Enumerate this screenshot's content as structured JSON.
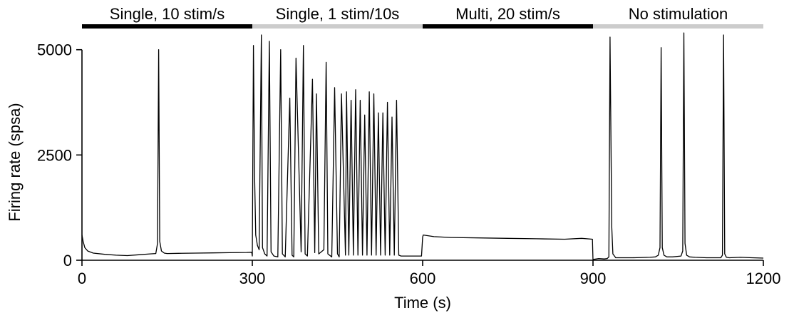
{
  "chart_data": {
    "type": "line",
    "xlabel": "Time (s)",
    "ylabel": "Firing rate (spsa)",
    "xlim": [
      0,
      1200
    ],
    "ylim": [
      0,
      5300
    ],
    "xticks": [
      0,
      300,
      600,
      900,
      1200
    ],
    "yticks": [
      0,
      2500,
      5000
    ],
    "grid": false,
    "legend": "none",
    "segments": [
      {
        "label": "Single, 10 stim/s",
        "start": 0,
        "end": 300,
        "color": "#000000"
      },
      {
        "label": "Single, 1 stim/10s",
        "start": 300,
        "end": 600,
        "color": "#cccccc"
      },
      {
        "label": "Multi, 20 stim/s",
        "start": 600,
        "end": 900,
        "color": "#000000"
      },
      {
        "label": "No stimulation",
        "start": 900,
        "end": 1200,
        "color": "#cccccc"
      }
    ],
    "series": [
      {
        "x": [
          0,
          2,
          5,
          10,
          20,
          40,
          60,
          80,
          100,
          120,
          130,
          133,
          135,
          137,
          140,
          145,
          150,
          170,
          200,
          230,
          260,
          290,
          299,
          300,
          302,
          304,
          306,
          309,
          312,
          316,
          318,
          322,
          326,
          330,
          333,
          338,
          345,
          350,
          353,
          358,
          366,
          370,
          373,
          377,
          386,
          390,
          393,
          397,
          406,
          410,
          413,
          417,
          426,
          430,
          433,
          440,
          445,
          450,
          453,
          457,
          464,
          466,
          470,
          474,
          478,
          482,
          486,
          490,
          494,
          498,
          502,
          506,
          510,
          514,
          518,
          522,
          526,
          530,
          534,
          538,
          542,
          546,
          550,
          554,
          558,
          562,
          566,
          570,
          574,
          578,
          582,
          586,
          590,
          594,
          598,
          600,
          601,
          620,
          650,
          700,
          750,
          800,
          850,
          880,
          899,
          900,
          901,
          910,
          920,
          925,
          928,
          930,
          933,
          935,
          940,
          950,
          970,
          1000,
          1010,
          1015,
          1018,
          1020,
          1022,
          1025,
          1030,
          1040,
          1055,
          1058,
          1060,
          1062,
          1065,
          1070,
          1080,
          1100,
          1125,
          1128,
          1130,
          1132,
          1135,
          1140,
          1160,
          1180,
          1200
        ],
        "y": [
          600,
          450,
          300,
          220,
          170,
          140,
          120,
          110,
          130,
          150,
          160,
          400,
          5000,
          450,
          220,
          170,
          160,
          165,
          170,
          175,
          180,
          185,
          190,
          100,
          5100,
          2000,
          600,
          350,
          250,
          5350,
          300,
          150,
          100,
          5200,
          200,
          100,
          80,
          5000,
          150,
          80,
          3850,
          120,
          80,
          4800,
          200,
          5100,
          150,
          100,
          4300,
          180,
          3950,
          150,
          250,
          4700,
          150,
          80,
          4100,
          150,
          80,
          3950,
          120,
          4000,
          120,
          3800,
          120,
          4050,
          120,
          3800,
          120,
          3450,
          120,
          4000,
          120,
          3950,
          120,
          3500,
          120,
          3500,
          120,
          3750,
          120,
          3400,
          120,
          3800,
          120,
          100,
          100,
          100,
          100,
          100,
          100,
          100,
          100,
          100,
          100,
          550,
          600,
          560,
          540,
          530,
          520,
          510,
          500,
          520,
          500,
          0,
          20,
          40,
          30,
          40,
          80,
          5300,
          800,
          150,
          60,
          60,
          60,
          70,
          80,
          120,
          300,
          5050,
          300,
          120,
          80,
          80,
          100,
          220,
          5400,
          400,
          120,
          80,
          70,
          60,
          60,
          120,
          5350,
          150,
          70,
          60,
          70,
          60,
          50
        ]
      }
    ]
  }
}
